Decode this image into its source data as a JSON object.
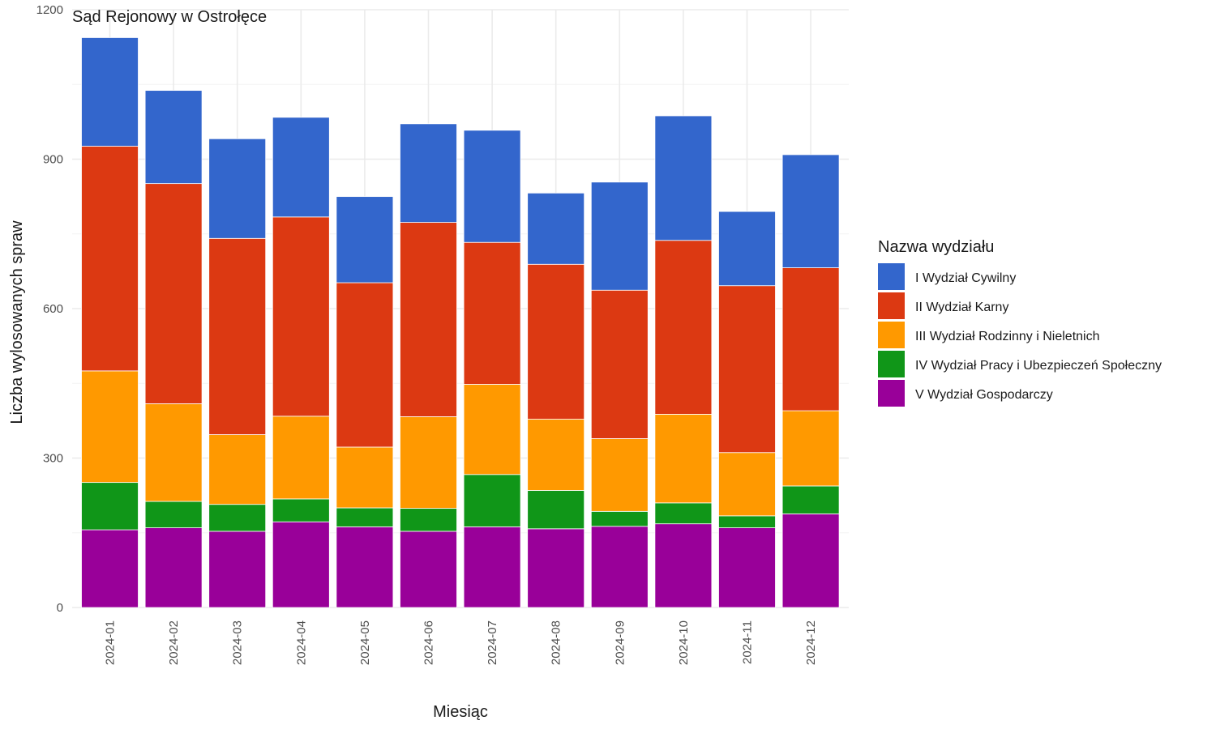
{
  "chart_data": {
    "type": "bar",
    "stacked": true,
    "title": "Sąd Rejonowy w Ostrołęce",
    "xlabel": "Miesiąc",
    "ylabel": "Liczba wylosowanych spraw",
    "ylim": [
      0,
      1200
    ],
    "yticks": [
      0,
      300,
      600,
      900,
      1200
    ],
    "grid": true,
    "legend_title": "Nazwa wydziału",
    "legend_position": "right",
    "categories": [
      "2024-01",
      "2024-02",
      "2024-03",
      "2024-04",
      "2024-05",
      "2024-06",
      "2024-07",
      "2024-08",
      "2024-09",
      "2024-10",
      "2024-11",
      "2024-12"
    ],
    "series": [
      {
        "name": "V Wydział Gospodarczy",
        "color": "#990099",
        "values": [
          156,
          160,
          153,
          172,
          162,
          153,
          162,
          158,
          163,
          168,
          160,
          188
        ]
      },
      {
        "name": "IV Wydział Pracy i Ubezpieczeń Społeczny",
        "color": "#109618",
        "values": [
          95,
          53,
          54,
          46,
          38,
          46,
          105,
          77,
          30,
          42,
          24,
          56
        ]
      },
      {
        "name": "III Wydział Rodzinny i Nieletnich",
        "color": "#ff9900",
        "values": [
          224,
          196,
          140,
          166,
          122,
          184,
          181,
          143,
          146,
          178,
          127,
          151
        ]
      },
      {
        "name": "II Wydział Karny",
        "color": "#dc3912",
        "values": [
          451,
          442,
          394,
          400,
          330,
          390,
          285,
          311,
          298,
          349,
          335,
          287
        ]
      },
      {
        "name": "I Wydział Cywilny",
        "color": "#3366cc",
        "values": [
          218,
          187,
          200,
          200,
          173,
          198,
          225,
          143,
          217,
          250,
          149,
          227
        ]
      }
    ],
    "legend_order": [
      "I Wydział Cywilny",
      "II Wydział Karny",
      "III Wydział Rodzinny i Nieletnich",
      "IV Wydział Pracy i Ubezpieczeń Społeczny",
      "V Wydział Gospodarczy"
    ]
  }
}
